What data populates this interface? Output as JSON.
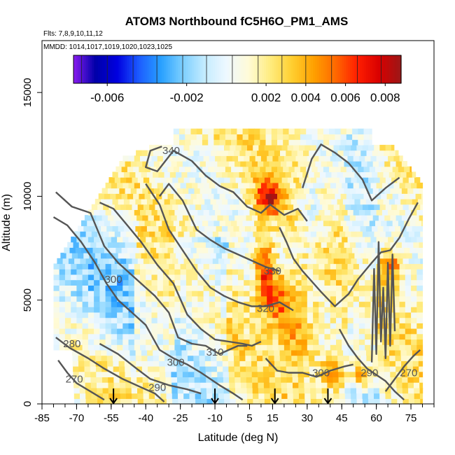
{
  "chart_data": {
    "type": "heatmap",
    "title": "ATOM3 Northbound fC5H6O_PM1_AMS",
    "flights_text": "Flts: 7,8,9,10,11,12",
    "mmdd_text": "MMDD: 1014,1017,1019,1020,1023,1025",
    "xlabel": "Latitude (deg N)",
    "ylabel": "Altitude (m)",
    "xlim": [
      -85,
      85
    ],
    "ylim": [
      0,
      17500
    ],
    "x_ticks": [
      -85,
      -70,
      -55,
      -40,
      -25,
      -10,
      5,
      15,
      30,
      45,
      60,
      75
    ],
    "x_tick_labels": [
      "-85",
      "-70",
      "-55",
      "-40",
      "-25",
      "-10",
      "5",
      "15",
      "30",
      "45",
      "60",
      "75"
    ],
    "x_minor_step": 5,
    "y_ticks": [
      0,
      5000,
      10000,
      15000
    ],
    "y_tick_labels": [
      "0",
      "5000",
      "10000",
      "15000"
    ],
    "colorbar": {
      "range": [
        -0.0077,
        0.0088
      ],
      "tick_values": [
        -0.006,
        -0.002,
        0.002,
        0.004,
        0.006,
        0.008
      ],
      "tick_labels": [
        "-0.006",
        "-0.002",
        "0.002",
        "0.004",
        "0.006",
        "0.008"
      ],
      "colors": [
        "#8a1cf0",
        "#0000a8",
        "#0000e0",
        "#1c5cff",
        "#28a0ff",
        "#7ccfff",
        "#c4ecff",
        "#eef8ff",
        "#fffbd8",
        "#ffec80",
        "#ffcf30",
        "#ffa000",
        "#ff6800",
        "#ff1e00",
        "#d80000",
        "#9a1818"
      ],
      "divisions": [
        -0.0073,
        -0.006,
        -0.0047,
        -0.0035,
        -0.0022,
        -0.001,
        0.0003,
        0.0016,
        0.0028,
        0.004,
        0.0053,
        0.0066,
        0.0078
      ]
    },
    "arrows_lat": [
      -54,
      -10,
      16,
      39
    ],
    "theta_contours": [
      {
        "label": "270",
        "label_at": [
          -71,
          1200
        ],
        "points": [
          [
            -78,
            2100
          ],
          [
            -74,
            1500
          ],
          [
            -70,
            1000
          ],
          [
            -64,
            600
          ],
          [
            -58,
            200
          ]
        ]
      },
      {
        "label": "280",
        "label_at": [
          -72,
          2900
        ],
        "points": [
          [
            -79,
            3200
          ],
          [
            -73,
            2700
          ],
          [
            -65,
            2200
          ],
          [
            -58,
            1700
          ],
          [
            -50,
            1200
          ],
          [
            -42,
            800
          ],
          [
            -36,
            500
          ],
          [
            -32,
            100
          ]
        ]
      },
      {
        "label": "290",
        "label_at": [
          -35,
          800
        ],
        "points": [
          [
            -60,
            2900
          ],
          [
            -52,
            2400
          ],
          [
            -44,
            1700
          ],
          [
            -38,
            1200
          ],
          [
            -30,
            900
          ],
          [
            -22,
            700
          ],
          [
            -16,
            500
          ]
        ]
      },
      {
        "label": "300",
        "label_at": [
          -54,
          6000
        ],
        "points": [
          [
            -80,
            9000
          ],
          [
            -74,
            8600
          ],
          [
            -68,
            7800
          ],
          [
            -62,
            6800
          ],
          [
            -57,
            5800
          ],
          [
            -52,
            5000
          ],
          [
            -46,
            4400
          ],
          [
            -40,
            3800
          ],
          [
            -34,
            2600
          ],
          [
            -28,
            2200
          ],
          [
            -22,
            1900
          ],
          [
            -16,
            1500
          ],
          [
            -8,
            900
          ],
          [
            -2,
            500
          ],
          [
            2,
            200
          ]
        ]
      },
      {
        "label": "300",
        "label_at": [
          -27,
          2000
        ],
        "points": [
          [
            -79,
            10200
          ],
          [
            -72,
            9500
          ],
          [
            -64,
            9200
          ],
          [
            -58,
            7600
          ],
          [
            -52,
            6800
          ],
          [
            -44,
            6000
          ],
          [
            -36,
            5200
          ],
          [
            -30,
            4400
          ],
          [
            -26,
            3200
          ],
          [
            -20,
            2900
          ],
          [
            -14,
            2800
          ],
          [
            -8,
            2400
          ],
          [
            -4,
            2600
          ],
          [
            0,
            2800
          ],
          [
            4,
            2800
          ]
        ]
      },
      {
        "label": "310",
        "label_at": [
          -10,
          2500
        ],
        "points": [
          [
            -60,
            9700
          ],
          [
            -54,
            9400
          ],
          [
            -48,
            8600
          ],
          [
            -42,
            7800
          ],
          [
            -35,
            6700
          ],
          [
            -28,
            5800
          ],
          [
            -22,
            4300
          ],
          [
            -16,
            3600
          ],
          [
            -10,
            3100
          ],
          [
            -4,
            3000
          ],
          [
            2,
            2900
          ],
          [
            6,
            2800
          ],
          [
            10,
            3000
          ]
        ]
      },
      {
        "label": "320",
        "label_at": [
          12,
          4600
        ],
        "points": [
          [
            -40,
            10600
          ],
          [
            -34,
            9600
          ],
          [
            -30,
            8400
          ],
          [
            -24,
            7400
          ],
          [
            -18,
            6400
          ],
          [
            -12,
            5600
          ],
          [
            -6,
            5200
          ],
          [
            0,
            4900
          ],
          [
            6,
            4700
          ],
          [
            12,
            4700
          ],
          [
            18,
            4900
          ],
          [
            24,
            4500
          ]
        ]
      },
      {
        "label": "330",
        "label_at": [
          15,
          6400
        ],
        "points": [
          [
            -34,
            10000
          ],
          [
            -30,
            10600
          ],
          [
            -24,
            9800
          ],
          [
            -18,
            8400
          ],
          [
            -12,
            7900
          ],
          [
            -6,
            7500
          ],
          [
            0,
            7200
          ],
          [
            6,
            6900
          ],
          [
            12,
            6600
          ],
          [
            18,
            6400
          ]
        ]
      },
      {
        "label": "340",
        "label_at": [
          -29,
          12200
        ],
        "points": [
          [
            -33,
            12400
          ],
          [
            -38,
            12200
          ],
          [
            -40,
            11400
          ],
          [
            -35,
            11200
          ],
          [
            -28,
            12200
          ],
          [
            -20,
            11700
          ],
          [
            -14,
            11000
          ],
          [
            -8,
            10500
          ],
          [
            -2,
            10200
          ],
          [
            4,
            9500
          ],
          [
            10,
            9200
          ],
          [
            14,
            9600
          ],
          [
            20,
            9100
          ],
          [
            26,
            9400
          ],
          [
            30,
            8800
          ]
        ]
      },
      {
        "label": "",
        "label_at": [
          0,
          0
        ],
        "points": [
          [
            18,
            8500
          ],
          [
            21,
            7800
          ],
          [
            24,
            7000
          ],
          [
            28,
            6400
          ],
          [
            32,
            5900
          ],
          [
            36,
            5400
          ],
          [
            42,
            4700
          ],
          [
            48,
            5300
          ],
          [
            52,
            6000
          ],
          [
            58,
            6800
          ],
          [
            62,
            7300
          ],
          [
            66,
            7400
          ],
          [
            70,
            8000
          ],
          [
            74,
            8900
          ],
          [
            78,
            9700
          ]
        ]
      },
      {
        "label": "",
        "label_at": [
          0,
          0
        ],
        "points": [
          [
            28,
            10400
          ],
          [
            32,
            11800
          ],
          [
            36,
            12500
          ],
          [
            42,
            12100
          ],
          [
            48,
            11600
          ],
          [
            54,
            10800
          ],
          [
            58,
            9800
          ],
          [
            64,
            10400
          ],
          [
            70,
            10900
          ]
        ]
      },
      {
        "label": "300",
        "label_at": [
          36,
          1500
        ],
        "points": [
          [
            12,
            2200
          ],
          [
            17,
            1600
          ],
          [
            22,
            1500
          ],
          [
            28,
            1500
          ],
          [
            34,
            1300
          ],
          [
            40,
            1600
          ],
          [
            46,
            1800
          ],
          [
            50,
            1900
          ]
        ]
      },
      {
        "label": "290",
        "label_at": [
          57,
          1500
        ],
        "points": [
          [
            44,
            3600
          ],
          [
            48,
            2800
          ],
          [
            52,
            2200
          ],
          [
            56,
            1700
          ],
          [
            60,
            1400
          ],
          [
            64,
            1100
          ],
          [
            68,
            600
          ],
          [
            72,
            200
          ]
        ]
      },
      {
        "label": "270",
        "label_at": [
          74,
          1500
        ],
        "points": [
          [
            64,
            600
          ],
          [
            68,
            1200
          ],
          [
            72,
            1800
          ],
          [
            76,
            2300
          ],
          [
            79,
            2600
          ]
        ]
      },
      {
        "label": "",
        "label_at": [
          0,
          0
        ],
        "points": [
          [
            58,
            2000
          ],
          [
            59,
            6500
          ],
          [
            60,
            2400
          ],
          [
            61,
            7800
          ],
          [
            62,
            3000
          ],
          [
            63,
            5600
          ],
          [
            64,
            2200
          ],
          [
            65,
            6800
          ],
          [
            66,
            2800
          ],
          [
            67,
            7200
          ],
          [
            68,
            3500
          ]
        ]
      }
    ]
  }
}
